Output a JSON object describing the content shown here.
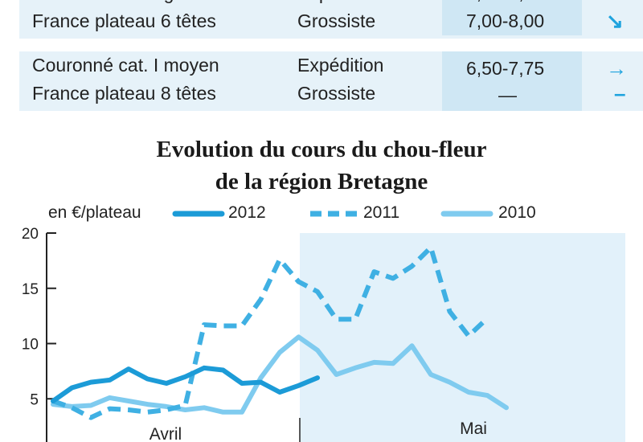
{
  "table": {
    "rows": [
      {
        "product": [
          "Couronné cat. I gros",
          "France plateau 6 têtes"
        ],
        "market": [
          "Expédition",
          "Grossiste"
        ],
        "price": [
          "6,50-7,50",
          "7,00-8,00"
        ],
        "trend": [
          "↘",
          "↘"
        ]
      },
      {
        "product": [
          "Couronné cat. I moyen",
          "France plateau 8 têtes"
        ],
        "market": [
          "Expédition",
          "Grossiste"
        ],
        "price": [
          "6,50-7,75",
          "—"
        ],
        "trend": [
          "→",
          "–"
        ]
      }
    ]
  },
  "chart_data": {
    "type": "line",
    "title": [
      "Evolution du cours du chou-fleur",
      "de la région Bretagne"
    ],
    "ylabel": "en €/plateau",
    "ylim": [
      0,
      20
    ],
    "yticks": [
      5,
      10,
      15,
      20
    ],
    "grid": false,
    "legend_position": "top",
    "period_labels": [
      "Avril",
      "Mai"
    ],
    "shaded_period": "Mai",
    "colors": {
      "2012": "#1c9bd7",
      "2011": "#3fb0e3",
      "2010": "#7fcbef",
      "shade": "#e2f1fa"
    },
    "x": [
      1,
      2,
      3,
      4,
      5,
      6,
      7,
      8,
      9,
      10,
      11,
      12,
      13,
      14,
      15,
      16,
      17,
      18,
      19,
      20,
      21,
      22,
      23,
      24,
      25,
      26,
      27,
      28,
      29,
      30,
      31
    ],
    "series": [
      {
        "name": "2012",
        "style": "solid",
        "values": [
          4.8,
          6.0,
          6.5,
          6.7,
          7.7,
          6.8,
          6.4,
          7.0,
          7.8,
          7.6,
          6.4,
          6.5,
          5.6,
          6.2,
          6.9,
          null,
          null,
          null,
          null,
          null,
          null,
          null,
          null,
          null,
          null,
          null,
          null,
          null,
          null,
          null,
          null
        ]
      },
      {
        "name": "2011",
        "style": "dashed",
        "values": [
          4.8,
          4.2,
          3.3,
          4.1,
          4.0,
          3.8,
          4.0,
          4.4,
          11.7,
          11.6,
          11.6,
          14.0,
          17.6,
          15.6,
          14.7,
          12.2,
          12.2,
          16.5,
          15.9,
          17.0,
          18.7,
          12.9,
          10.7,
          12.3,
          null,
          null,
          null,
          null,
          null,
          null,
          null
        ]
      },
      {
        "name": "2010",
        "style": "solid",
        "values": [
          4.5,
          4.3,
          4.4,
          5.1,
          4.8,
          4.5,
          4.3,
          4.0,
          4.2,
          3.8,
          3.8,
          6.9,
          9.2,
          10.6,
          9.4,
          7.2,
          7.8,
          8.3,
          8.2,
          9.8,
          7.2,
          6.5,
          5.6,
          5.3,
          4.2,
          null,
          null,
          null,
          null,
          null,
          null
        ]
      }
    ]
  }
}
